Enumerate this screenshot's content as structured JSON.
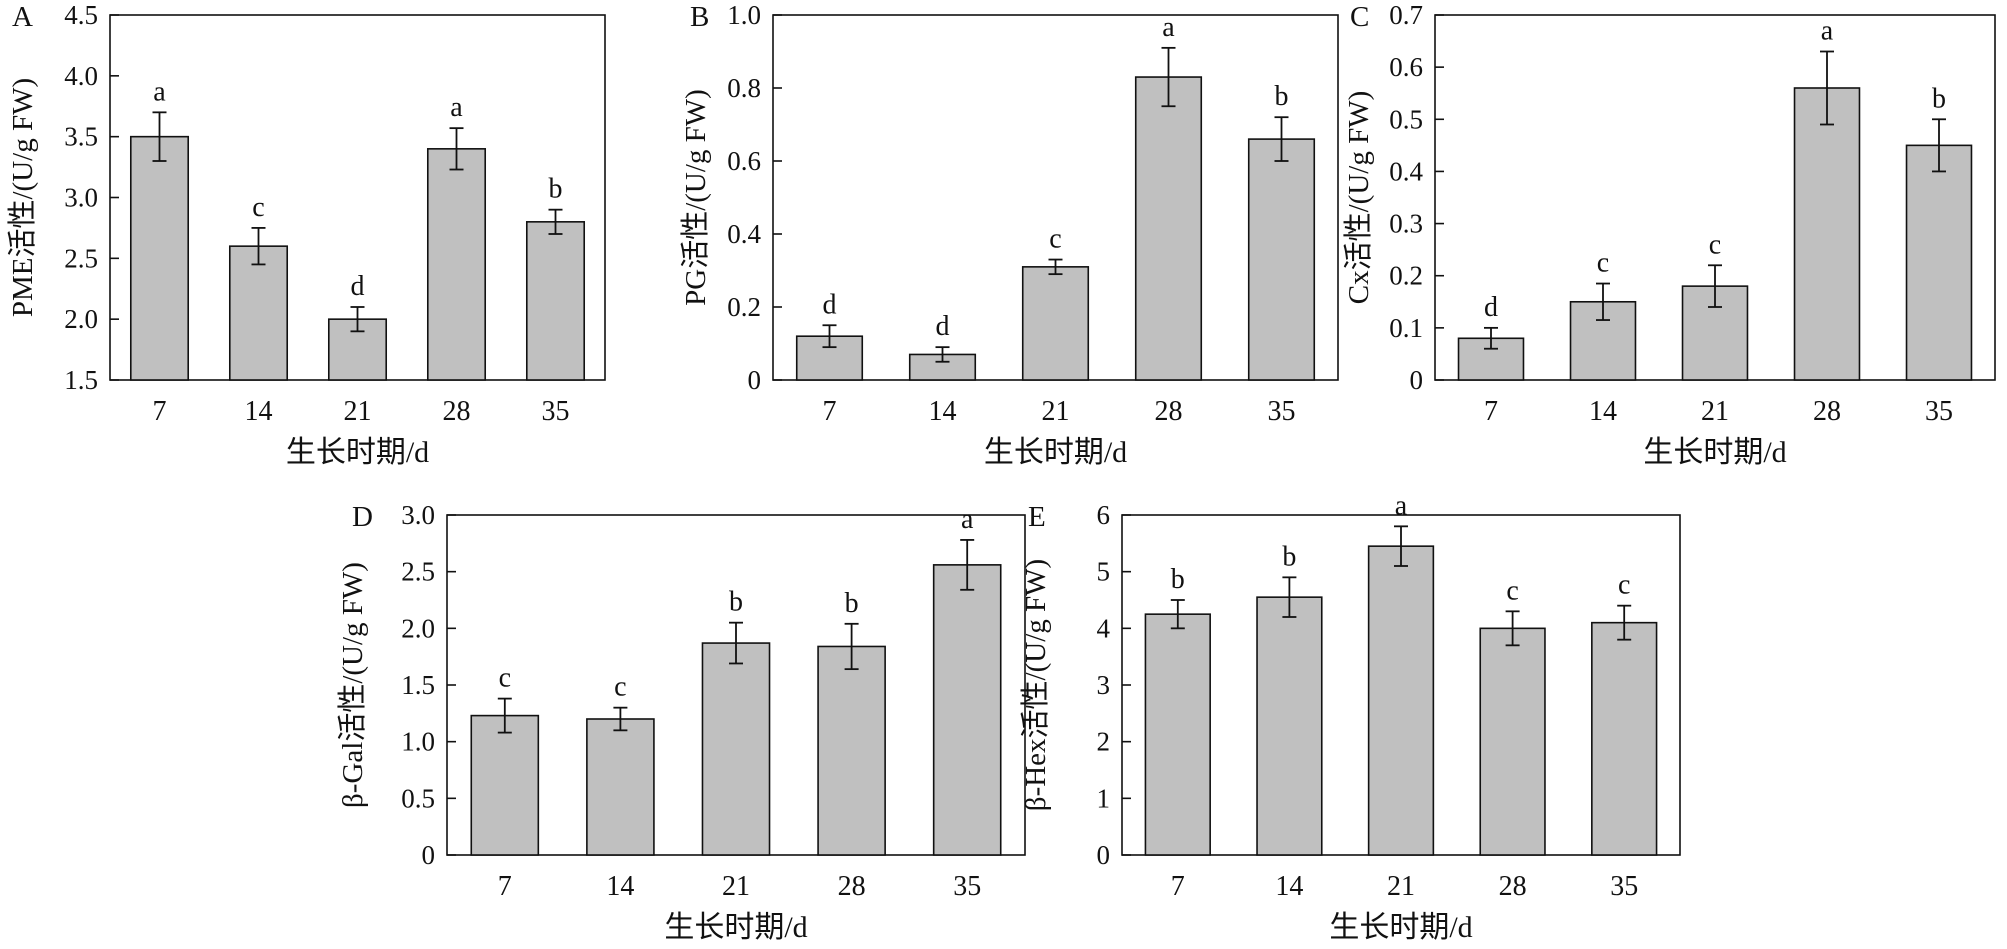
{
  "chart_data": [
    {
      "panel_label": "A",
      "type": "bar",
      "categories": [
        "7",
        "14",
        "21",
        "28",
        "35"
      ],
      "values": [
        3.5,
        2.6,
        2.0,
        3.4,
        2.8
      ],
      "errors": [
        0.2,
        0.15,
        0.1,
        0.17,
        0.1
      ],
      "letters": [
        "a",
        "c",
        "d",
        "a",
        "b"
      ],
      "ylim": [
        1.5,
        4.5
      ],
      "yticks": [
        1.5,
        2.0,
        2.5,
        3.0,
        3.5,
        4.0,
        4.5
      ],
      "ytick_labels": [
        "1.5",
        "2.0",
        "2.5",
        "3.0",
        "3.5",
        "4.0",
        "4.5"
      ],
      "xlabel": "生长时期/d",
      "ylabel": "PME活性/(U/g FW)",
      "bar_color": "#c0c0c0"
    },
    {
      "panel_label": "B",
      "type": "bar",
      "categories": [
        "7",
        "14",
        "21",
        "28",
        "35"
      ],
      "values": [
        0.12,
        0.07,
        0.31,
        0.83,
        0.66
      ],
      "errors": [
        0.03,
        0.02,
        0.02,
        0.08,
        0.06
      ],
      "letters": [
        "d",
        "d",
        "c",
        "a",
        "b"
      ],
      "ylim": [
        0,
        1.0
      ],
      "yticks": [
        0,
        0.2,
        0.4,
        0.6,
        0.8,
        1.0
      ],
      "ytick_labels": [
        "0",
        "0.2",
        "0.4",
        "0.6",
        "0.8",
        "1.0"
      ],
      "xlabel": "生长时期/d",
      "ylabel": "PG活性/(U/g FW)",
      "bar_color": "#c0c0c0"
    },
    {
      "panel_label": "C",
      "type": "bar",
      "categories": [
        "7",
        "14",
        "21",
        "28",
        "35"
      ],
      "values": [
        0.08,
        0.15,
        0.18,
        0.56,
        0.45
      ],
      "errors": [
        0.02,
        0.035,
        0.04,
        0.07,
        0.05
      ],
      "letters": [
        "d",
        "c",
        "c",
        "a",
        "b"
      ],
      "ylim": [
        0,
        0.7
      ],
      "yticks": [
        0,
        0.1,
        0.2,
        0.3,
        0.4,
        0.5,
        0.6,
        0.7
      ],
      "ytick_labels": [
        "0",
        "0.1",
        "0.2",
        "0.3",
        "0.4",
        "0.5",
        "0.6",
        "0.7"
      ],
      "xlabel": "生长时期/d",
      "ylabel": "Cx活性/(U/g FW)",
      "bar_color": "#c0c0c0"
    },
    {
      "panel_label": "D",
      "type": "bar",
      "categories": [
        "7",
        "14",
        "21",
        "28",
        "35"
      ],
      "values": [
        1.23,
        1.2,
        1.87,
        1.84,
        2.56
      ],
      "errors": [
        0.15,
        0.1,
        0.18,
        0.2,
        0.22
      ],
      "letters": [
        "c",
        "c",
        "b",
        "b",
        "a"
      ],
      "ylim": [
        0,
        3.0
      ],
      "yticks": [
        0,
        0.5,
        1.0,
        1.5,
        2.0,
        2.5,
        3.0
      ],
      "ytick_labels": [
        "0",
        "0.5",
        "1.0",
        "1.5",
        "2.0",
        "2.5",
        "3.0"
      ],
      "xlabel": "生长时期/d",
      "ylabel": "β-Gal活性/(U/g FW)",
      "bar_color": "#c0c0c0"
    },
    {
      "panel_label": "E",
      "type": "bar",
      "categories": [
        "7",
        "14",
        "21",
        "28",
        "35"
      ],
      "values": [
        4.25,
        4.55,
        5.45,
        4.0,
        4.1
      ],
      "errors": [
        0.25,
        0.35,
        0.35,
        0.3,
        0.3
      ],
      "letters": [
        "b",
        "b",
        "a",
        "c",
        "c"
      ],
      "ylim": [
        0,
        6.0
      ],
      "yticks": [
        0,
        1,
        2,
        3,
        4,
        5,
        6
      ],
      "ytick_labels": [
        "0",
        "1",
        "2",
        "3",
        "4",
        "5",
        "6"
      ],
      "xlabel": "生长时期/d",
      "ylabel": "β-Hex活性/(U/g FW)",
      "bar_color": "#c0c0c0"
    }
  ]
}
